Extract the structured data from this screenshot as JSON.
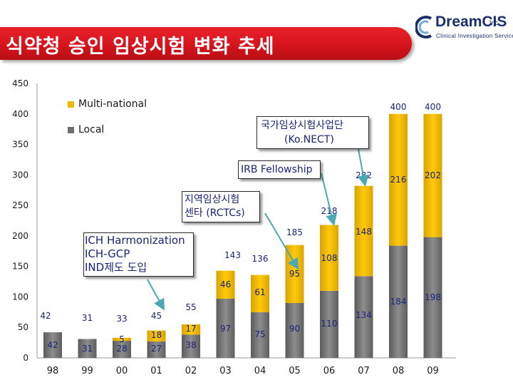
{
  "header": {
    "title": "식약청 승인 임상시험 변화 추세",
    "logo": {
      "name": "DreamCIS",
      "suffix": "Inc.",
      "tagline": "Clinical Investigation Services"
    }
  },
  "legend": {
    "multinational": "Multi-national",
    "local": "Local"
  },
  "annotations": {
    "ich": [
      "ICH Harmonization",
      "ICH-GCP",
      "IND제도 도입"
    ],
    "rctc": [
      "지역임상시험",
      "센타 (RCTCs)"
    ],
    "irb": "IRB Fellowship",
    "konect": [
      "국가임상시험사업단",
      "(Ko.NECT)"
    ]
  },
  "colors": {
    "multinational": "#f0b800",
    "local": "#6e6e6e",
    "local_light": "#8d8d8d",
    "title_bar": "#d6141c",
    "label_blue": "#1a2478",
    "arrow": "#4aa9b5"
  },
  "chart_data": {
    "type": "bar",
    "stacked": true,
    "categories": [
      "98",
      "99",
      "00",
      "01",
      "02",
      "03",
      "04",
      "05",
      "06",
      "07",
      "08",
      "09"
    ],
    "series": [
      {
        "name": "Local",
        "values": [
          42,
          31,
          28,
          27,
          38,
          97,
          75,
          90,
          110,
          134,
          184,
          198
        ]
      },
      {
        "name": "Multi-national",
        "values": [
          0,
          0,
          5,
          18,
          17,
          46,
          61,
          95,
          108,
          148,
          216,
          202
        ]
      }
    ],
    "totals": [
      42,
      31,
      33,
      45,
      55,
      143,
      136,
      185,
      218,
      282,
      400,
      400
    ],
    "ylim": [
      0,
      450
    ],
    "yticks": [
      0,
      50,
      100,
      150,
      200,
      250,
      300,
      350,
      400,
      450
    ],
    "legend_position": "top-left",
    "grid": false
  }
}
